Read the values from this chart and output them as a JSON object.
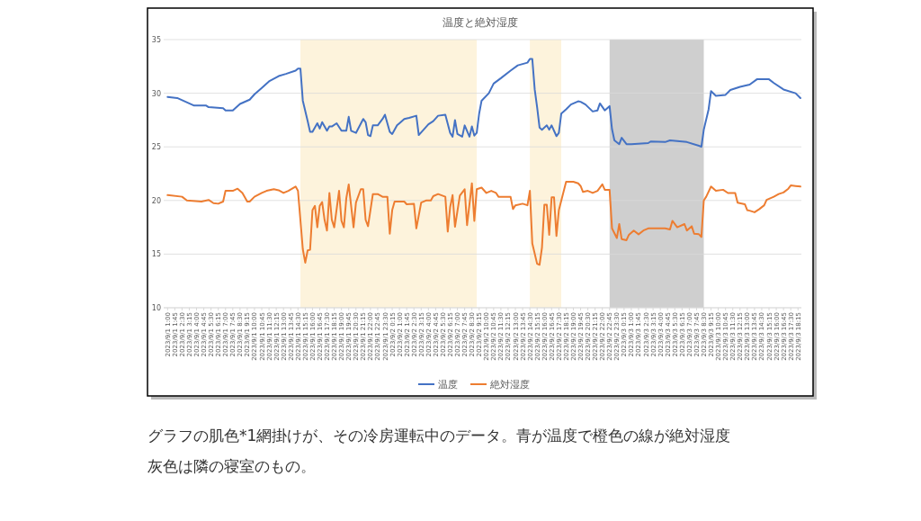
{
  "chart_data": {
    "type": "line",
    "title": "温度と絶対湿度",
    "xlim": [
      "2023-09-01T00:36",
      "2023-09-03T18:36"
    ],
    "ylim": [
      10,
      35
    ],
    "yticks": [
      10,
      15,
      20,
      25,
      30,
      35
    ],
    "grid": "y",
    "legend": "bottom",
    "xticks": [
      {
        "value": "2023-09-01T01:00",
        "label": "2023/9/1 1:00"
      },
      {
        "value": "2023-09-01T01:45",
        "label": "2023/9/1 1:45"
      },
      {
        "value": "2023-09-01T02:30",
        "label": "2023/9/1 2:30"
      },
      {
        "value": "2023-09-01T03:15",
        "label": "2023/9/1 3:15"
      },
      {
        "value": "2023-09-01T04:00",
        "label": "2023/9/1 4:00"
      },
      {
        "value": "2023-09-01T04:45",
        "label": "2023/9/1 4:45"
      },
      {
        "value": "2023-09-01T05:30",
        "label": "2023/9/1 5:30"
      },
      {
        "value": "2023-09-01T06:15",
        "label": "2023/9/1 6:15"
      },
      {
        "value": "2023-09-01T07:00",
        "label": "2023/9/1 7:00"
      },
      {
        "value": "2023-09-01T07:45",
        "label": "2023/9/1 7:45"
      },
      {
        "value": "2023-09-01T08:30",
        "label": "2023/9/1 8:30"
      },
      {
        "value": "2023-09-01T09:15",
        "label": "2023/9/1 9:15"
      },
      {
        "value": "2023-09-01T10:00",
        "label": "2023/9/1 10:00"
      },
      {
        "value": "2023-09-01T10:45",
        "label": "2023/9/1 10:45"
      },
      {
        "value": "2023-09-01T11:30",
        "label": "2023/9/1 11:30"
      },
      {
        "value": "2023-09-01T12:15",
        "label": "2023/9/1 12:15"
      },
      {
        "value": "2023-09-01T13:00",
        "label": "2023/9/1 13:00"
      },
      {
        "value": "2023-09-01T13:45",
        "label": "2023/9/1 13:45"
      },
      {
        "value": "2023-09-01T14:30",
        "label": "2023/9/1 14:30"
      },
      {
        "value": "2023-09-01T15:15",
        "label": "2023/9/1 15:15"
      },
      {
        "value": "2023-09-01T16:00",
        "label": "2023/9/1 16:00"
      },
      {
        "value": "2023-09-01T16:45",
        "label": "2023/9/1 16:45"
      },
      {
        "value": "2023-09-01T17:30",
        "label": "2023/9/1 17:30"
      },
      {
        "value": "2023-09-01T18:15",
        "label": "2023/9/1 18:15"
      },
      {
        "value": "2023-09-01T19:00",
        "label": "2023/9/1 19:00"
      },
      {
        "value": "2023-09-01T19:45",
        "label": "2023/9/1 19:45"
      },
      {
        "value": "2023-09-01T20:30",
        "label": "2023/9/1 20:30"
      },
      {
        "value": "2023-09-01T21:15",
        "label": "2023/9/1 21:15"
      },
      {
        "value": "2023-09-01T22:00",
        "label": "2023/9/1 22:00"
      },
      {
        "value": "2023-09-01T22:45",
        "label": "2023/9/1 22:45"
      },
      {
        "value": "2023-09-01T23:30",
        "label": "2023/9/1 23:30"
      },
      {
        "value": "2023-09-02T00:15",
        "label": "2023/9/2 0:15"
      },
      {
        "value": "2023-09-02T01:00",
        "label": "2023/9/2 1:00"
      },
      {
        "value": "2023-09-02T01:45",
        "label": "2023/9/2 1:45"
      },
      {
        "value": "2023-09-02T02:30",
        "label": "2023/9/2 2:30"
      },
      {
        "value": "2023-09-02T03:15",
        "label": "2023/9/2 3:15"
      },
      {
        "value": "2023-09-02T04:00",
        "label": "2023/9/2 4:00"
      },
      {
        "value": "2023-09-02T04:45",
        "label": "2023/9/2 4:45"
      },
      {
        "value": "2023-09-02T05:30",
        "label": "2023/9/2 5:30"
      },
      {
        "value": "2023-09-02T06:15",
        "label": "2023/9/2 6:15"
      },
      {
        "value": "2023-09-02T07:00",
        "label": "2023/9/2 7:00"
      },
      {
        "value": "2023-09-02T07:45",
        "label": "2023/9/2 7:45"
      },
      {
        "value": "2023-09-02T08:30",
        "label": "2023/9/2 8:30"
      },
      {
        "value": "2023-09-02T09:15",
        "label": "2023/9/2 9:15"
      },
      {
        "value": "2023-09-02T10:00",
        "label": "2023/9/2 10:00"
      },
      {
        "value": "2023-09-02T10:45",
        "label": "2023/9/2 10:45"
      },
      {
        "value": "2023-09-02T11:30",
        "label": "2023/9/2 11:30"
      },
      {
        "value": "2023-09-02T12:15",
        "label": "2023/9/2 12:15"
      },
      {
        "value": "2023-09-02T13:00",
        "label": "2023/9/2 13:00"
      },
      {
        "value": "2023-09-02T13:45",
        "label": "2023/9/2 13:45"
      },
      {
        "value": "2023-09-02T14:30",
        "label": "2023/9/2 14:30"
      },
      {
        "value": "2023-09-02T15:15",
        "label": "2023/9/2 15:15"
      },
      {
        "value": "2023-09-02T16:00",
        "label": "2023/9/2 16:00"
      },
      {
        "value": "2023-09-02T16:45",
        "label": "2023/9/2 16:45"
      },
      {
        "value": "2023-09-02T17:30",
        "label": "2023/9/2 17:30"
      },
      {
        "value": "2023-09-02T18:15",
        "label": "2023/9/2 18:15"
      },
      {
        "value": "2023-09-02T19:00",
        "label": "2023/9/2 19:00"
      },
      {
        "value": "2023-09-02T19:45",
        "label": "2023/9/2 19:45"
      },
      {
        "value": "2023-09-02T20:30",
        "label": "2023/9/2 20:30"
      },
      {
        "value": "2023-09-02T21:15",
        "label": "2023/9/2 21:15"
      },
      {
        "value": "2023-09-02T22:00",
        "label": "2023/9/2 22:00"
      },
      {
        "value": "2023-09-02T22:45",
        "label": "2023/9/2 22:45"
      },
      {
        "value": "2023-09-02T23:30",
        "label": "2023/9/2 23:30"
      },
      {
        "value": "2023-09-03T00:15",
        "label": "2023/9/3 0:15"
      },
      {
        "value": "2023-09-03T01:00",
        "label": "2023/9/3 1:00"
      },
      {
        "value": "2023-09-03T01:45",
        "label": "2023/9/3 1:45"
      },
      {
        "value": "2023-09-03T02:30",
        "label": "2023/9/3 2:30"
      },
      {
        "value": "2023-09-03T03:15",
        "label": "2023/9/3 3:15"
      },
      {
        "value": "2023-09-03T04:00",
        "label": "2023/9/3 4:00"
      },
      {
        "value": "2023-09-03T04:45",
        "label": "2023/9/3 4:45"
      },
      {
        "value": "2023-09-03T05:30",
        "label": "2023/9/3 5:30"
      },
      {
        "value": "2023-09-03T06:15",
        "label": "2023/9/3 6:15"
      },
      {
        "value": "2023-09-03T07:00",
        "label": "2023/9/3 7:00"
      },
      {
        "value": "2023-09-03T07:45",
        "label": "2023/9/3 7:45"
      },
      {
        "value": "2023-09-03T08:30",
        "label": "2023/9/3 8:30"
      },
      {
        "value": "2023-09-03T09:15",
        "label": "2023/9/3 9:15"
      },
      {
        "value": "2023-09-03T10:00",
        "label": "2023/9/3 10:00"
      },
      {
        "value": "2023-09-03T10:45",
        "label": "2023/9/3 10:45"
      },
      {
        "value": "2023-09-03T11:30",
        "label": "2023/9/3 11:30"
      },
      {
        "value": "2023-09-03T12:15",
        "label": "2023/9/3 12:15"
      },
      {
        "value": "2023-09-03T13:00",
        "label": "2023/9/3 13:00"
      },
      {
        "value": "2023-09-03T13:45",
        "label": "2023/9/3 13:45"
      },
      {
        "value": "2023-09-03T14:30",
        "label": "2023/9/3 14:30"
      },
      {
        "value": "2023-09-03T15:15",
        "label": "2023/9/3 15:15"
      },
      {
        "value": "2023-09-03T16:00",
        "label": "2023/9/3 16:00"
      },
      {
        "value": "2023-09-03T16:45",
        "label": "2023/9/3 16:45"
      },
      {
        "value": "2023-09-03T17:30",
        "label": "2023/9/3 17:30"
      },
      {
        "value": "2023-09-03T18:15",
        "label": "2023/9/3 18:15"
      }
    ],
    "bands": [
      {
        "axis": "x",
        "from": "2023-09-01T14:45",
        "to": "2023-09-02T09:00",
        "color": "#fdf3dc"
      },
      {
        "axis": "x",
        "from": "2023-09-02T14:30",
        "to": "2023-09-02T17:45",
        "color": "#fdf3dc"
      },
      {
        "axis": "x",
        "from": "2023-09-02T22:45",
        "to": "2023-09-03T08:30",
        "color": "#cfcfcf"
      }
    ],
    "series": [
      {
        "name": "温度",
        "color": "#4472c4",
        "x": [
          "2023-09-01T01:00",
          "2023-09-01T02:00",
          "2023-09-01T03:45",
          "2023-09-01T05:00",
          "2023-09-01T05:15",
          "2023-09-01T06:45",
          "2023-09-01T07:00",
          "2023-09-01T07:45",
          "2023-09-01T08:30",
          "2023-09-01T09:30",
          "2023-09-01T10:00",
          "2023-09-01T10:45",
          "2023-09-01T11:30",
          "2023-09-01T12:30",
          "2023-09-01T13:15",
          "2023-09-01T14:15",
          "2023-09-01T14:30",
          "2023-09-01T14:45",
          "2023-09-01T15:00",
          "2023-09-01T15:30",
          "2023-09-01T15:45",
          "2023-09-01T16:00",
          "2023-09-01T16:30",
          "2023-09-01T16:45",
          "2023-09-01T17:00",
          "2023-09-01T17:30",
          "2023-09-01T17:45",
          "2023-09-01T18:00",
          "2023-09-01T18:30",
          "2023-09-01T19:00",
          "2023-09-01T19:30",
          "2023-09-01T19:45",
          "2023-09-01T20:00",
          "2023-09-01T20:30",
          "2023-09-01T21:15",
          "2023-09-01T21:30",
          "2023-09-01T21:45",
          "2023-09-01T22:00",
          "2023-09-01T22:15",
          "2023-09-01T22:45",
          "2023-09-01T23:15",
          "2023-09-01T23:30",
          "2023-09-02T00:00",
          "2023-09-02T00:15",
          "2023-09-02T00:45",
          "2023-09-02T01:00",
          "2023-09-02T01:30",
          "2023-09-02T02:00",
          "2023-09-02T02:45",
          "2023-09-02T03:00",
          "2023-09-02T03:30",
          "2023-09-02T04:00",
          "2023-09-02T04:30",
          "2023-09-02T05:00",
          "2023-09-02T05:45",
          "2023-09-02T06:15",
          "2023-09-02T06:30",
          "2023-09-02T06:45",
          "2023-09-02T07:00",
          "2023-09-02T07:30",
          "2023-09-02T07:45",
          "2023-09-02T08:15",
          "2023-09-02T08:30",
          "2023-09-02T08:45",
          "2023-09-02T09:00",
          "2023-09-02T09:15",
          "2023-09-02T09:30",
          "2023-09-02T10:15",
          "2023-09-02T10:45",
          "2023-09-02T11:30",
          "2023-09-02T12:30",
          "2023-09-02T13:15",
          "2023-09-02T14:15",
          "2023-09-02T14:30",
          "2023-09-02T14:45",
          "2023-09-02T15:00",
          "2023-09-02T15:15",
          "2023-09-02T15:30",
          "2023-09-02T15:45",
          "2023-09-02T16:15",
          "2023-09-02T16:30",
          "2023-09-02T16:45",
          "2023-09-02T17:15",
          "2023-09-02T17:30",
          "2023-09-02T17:45",
          "2023-09-02T18:15",
          "2023-09-02T18:45",
          "2023-09-02T19:30",
          "2023-09-02T19:45",
          "2023-09-02T20:15",
          "2023-09-02T21:00",
          "2023-09-02T21:30",
          "2023-09-02T21:45",
          "2023-09-02T22:15",
          "2023-09-02T22:45",
          "2023-09-02T23:00",
          "2023-09-02T23:15",
          "2023-09-02T23:45",
          "2023-09-03T00:00",
          "2023-09-03T00:30",
          "2023-09-03T01:00",
          "2023-09-03T02:45",
          "2023-09-03T03:00",
          "2023-09-03T04:30",
          "2023-09-03T05:00",
          "2023-09-03T06:45",
          "2023-09-03T08:00",
          "2023-09-03T08:15",
          "2023-09-03T08:30",
          "2023-09-03T09:00",
          "2023-09-03T09:15",
          "2023-09-03T09:45",
          "2023-09-03T10:45",
          "2023-09-03T11:15",
          "2023-09-03T12:15",
          "2023-09-03T13:15",
          "2023-09-03T14:00",
          "2023-09-03T15:15",
          "2023-09-03T15:45",
          "2023-09-03T16:45",
          "2023-09-03T18:00",
          "2023-09-03T18:30"
        ],
        "values": [
          29.65,
          29.55,
          28.85,
          28.85,
          28.7,
          28.6,
          28.4,
          28.4,
          29.0,
          29.4,
          29.9,
          30.5,
          31.1,
          31.6,
          31.8,
          32.1,
          32.3,
          32.3,
          29.3,
          27.4,
          26.4,
          26.4,
          27.2,
          26.7,
          27.3,
          26.5,
          26.9,
          26.9,
          27.2,
          26.5,
          26.5,
          27.8,
          26.5,
          26.3,
          27.6,
          27.3,
          26.1,
          26.0,
          27.0,
          27.0,
          27.6,
          28.0,
          26.4,
          26.2,
          27.0,
          27.2,
          27.6,
          27.7,
          27.9,
          26.1,
          26.6,
          27.1,
          27.4,
          27.9,
          28.0,
          26.3,
          25.95,
          27.5,
          26.2,
          25.95,
          27.0,
          25.95,
          26.9,
          26.05,
          26.3,
          28.1,
          29.3,
          30.0,
          30.9,
          31.4,
          32.1,
          32.6,
          32.85,
          33.2,
          33.2,
          30.35,
          28.7,
          26.8,
          26.6,
          27.0,
          26.6,
          27.0,
          26.0,
          26.3,
          28.1,
          28.5,
          28.95,
          29.25,
          29.2,
          28.95,
          28.3,
          28.4,
          29.05,
          28.4,
          28.8,
          26.65,
          25.6,
          25.25,
          25.85,
          25.25,
          25.25,
          25.35,
          25.5,
          25.45,
          25.6,
          25.45,
          25.1,
          25.0,
          26.6,
          28.5,
          30.2,
          29.75,
          29.85,
          30.3,
          30.6,
          30.8,
          31.3,
          31.3,
          30.95,
          30.35,
          30.0,
          29.55
        ]
      },
      {
        "name": "絶対湿度",
        "color": "#ed7d31",
        "x": [
          "2023-09-01T01:00",
          "2023-09-01T02:30",
          "2023-09-01T03:00",
          "2023-09-01T04:30",
          "2023-09-01T05:15",
          "2023-09-01T05:45",
          "2023-09-01T06:15",
          "2023-09-01T06:45",
          "2023-09-01T07:00",
          "2023-09-01T07:45",
          "2023-09-01T08:15",
          "2023-09-01T08:45",
          "2023-09-01T09:15",
          "2023-09-01T09:30",
          "2023-09-01T10:00",
          "2023-09-01T10:45",
          "2023-09-01T11:15",
          "2023-09-01T12:00",
          "2023-09-01T12:30",
          "2023-09-01T13:00",
          "2023-09-01T13:30",
          "2023-09-01T14:15",
          "2023-09-01T14:30",
          "2023-09-01T15:00",
          "2023-09-01T15:15",
          "2023-09-01T15:30",
          "2023-09-01T15:45",
          "2023-09-01T16:00",
          "2023-09-01T16:15",
          "2023-09-01T16:30",
          "2023-09-01T16:45",
          "2023-09-01T17:00",
          "2023-09-01T17:15",
          "2023-09-01T17:30",
          "2023-09-01T17:45",
          "2023-09-01T18:00",
          "2023-09-01T18:15",
          "2023-09-01T18:45",
          "2023-09-01T19:00",
          "2023-09-01T19:15",
          "2023-09-01T19:30",
          "2023-09-01T19:45",
          "2023-09-01T20:15",
          "2023-09-01T20:30",
          "2023-09-01T21:00",
          "2023-09-01T21:15",
          "2023-09-01T21:30",
          "2023-09-01T21:45",
          "2023-09-01T22:15",
          "2023-09-01T22:45",
          "2023-09-01T23:15",
          "2023-09-01T23:45",
          "2023-09-02T00:00",
          "2023-09-02T00:15",
          "2023-09-02T00:30",
          "2023-09-02T01:30",
          "2023-09-02T01:45",
          "2023-09-02T02:30",
          "2023-09-02T02:45",
          "2023-09-02T03:15",
          "2023-09-02T03:45",
          "2023-09-02T04:15",
          "2023-09-02T04:30",
          "2023-09-02T05:00",
          "2023-09-02T05:45",
          "2023-09-02T06:00",
          "2023-09-02T06:15",
          "2023-09-02T06:30",
          "2023-09-02T06:45",
          "2023-09-02T07:15",
          "2023-09-02T07:45",
          "2023-09-02T08:00",
          "2023-09-02T08:30",
          "2023-09-02T08:45",
          "2023-09-02T09:00",
          "2023-09-02T09:30",
          "2023-09-02T10:00",
          "2023-09-02T10:30",
          "2023-09-02T11:00",
          "2023-09-02T11:15",
          "2023-09-02T12:30",
          "2023-09-02T12:45",
          "2023-09-02T13:00",
          "2023-09-02T13:45",
          "2023-09-02T14:15",
          "2023-09-02T14:30",
          "2023-09-02T14:45",
          "2023-09-02T15:15",
          "2023-09-02T15:30",
          "2023-09-02T15:45",
          "2023-09-02T16:00",
          "2023-09-02T16:15",
          "2023-09-02T16:30",
          "2023-09-02T16:45",
          "2023-09-02T17:00",
          "2023-09-02T17:15",
          "2023-09-02T17:30",
          "2023-09-02T18:15",
          "2023-09-02T19:00",
          "2023-09-02T19:30",
          "2023-09-02T19:45",
          "2023-09-02T20:00",
          "2023-09-02T20:30",
          "2023-09-02T21:00",
          "2023-09-02T21:30",
          "2023-09-02T22:00",
          "2023-09-02T22:15",
          "2023-09-02T22:45",
          "2023-09-02T23:00",
          "2023-09-02T23:30",
          "2023-09-02T23:45",
          "2023-09-03T00:00",
          "2023-09-03T00:30",
          "2023-09-03T00:45",
          "2023-09-03T01:15",
          "2023-09-03T01:45",
          "2023-09-03T02:15",
          "2023-09-03T02:45",
          "2023-09-03T04:30",
          "2023-09-03T05:00",
          "2023-09-03T05:15",
          "2023-09-03T05:45",
          "2023-09-03T06:30",
          "2023-09-03T06:45",
          "2023-09-03T07:15",
          "2023-09-03T07:30",
          "2023-09-03T08:00",
          "2023-09-03T08:15",
          "2023-09-03T08:30",
          "2023-09-03T08:45",
          "2023-09-03T09:15",
          "2023-09-03T09:45",
          "2023-09-03T10:30",
          "2023-09-03T11:00",
          "2023-09-03T11:45",
          "2023-09-03T12:00",
          "2023-09-03T12:45",
          "2023-09-03T13:00",
          "2023-09-03T13:15",
          "2023-09-03T13:45",
          "2023-09-03T14:15",
          "2023-09-03T14:45",
          "2023-09-03T15:00",
          "2023-09-03T15:45",
          "2023-09-03T16:15",
          "2023-09-03T16:45",
          "2023-09-03T17:15",
          "2023-09-03T17:30",
          "2023-09-03T18:00",
          "2023-09-03T18:30"
        ],
        "values": [
          20.5,
          20.35,
          20.0,
          19.9,
          20.05,
          19.75,
          19.7,
          19.9,
          20.9,
          20.9,
          21.1,
          20.7,
          19.9,
          19.9,
          20.35,
          20.7,
          20.9,
          21.05,
          20.95,
          20.7,
          20.9,
          21.3,
          20.9,
          15.45,
          14.2,
          15.35,
          15.4,
          19.1,
          19.5,
          17.5,
          19.5,
          19.85,
          18.2,
          17.2,
          20.7,
          18.2,
          17.5,
          20.9,
          18.1,
          17.5,
          20.2,
          21.5,
          17.5,
          19.8,
          21.05,
          21.05,
          18.2,
          17.6,
          20.6,
          20.6,
          20.35,
          20.35,
          16.9,
          19.1,
          19.9,
          19.9,
          19.65,
          19.7,
          17.4,
          19.8,
          20.0,
          20.0,
          20.4,
          20.6,
          20.35,
          17.1,
          19.4,
          20.5,
          17.55,
          20.45,
          21.05,
          17.7,
          21.6,
          18.1,
          21.05,
          21.2,
          20.7,
          20.9,
          20.7,
          20.35,
          20.35,
          19.2,
          19.55,
          19.7,
          19.55,
          20.9,
          16.0,
          14.1,
          14.0,
          15.6,
          19.6,
          19.6,
          16.8,
          20.3,
          20.3,
          16.7,
          19.1,
          21.75,
          21.75,
          21.6,
          21.35,
          20.8,
          20.9,
          20.7,
          20.9,
          21.5,
          21.0,
          21.0,
          17.4,
          16.5,
          17.8,
          16.4,
          16.3,
          16.8,
          17.2,
          16.85,
          17.2,
          17.4,
          17.4,
          17.3,
          18.1,
          17.5,
          17.8,
          17.2,
          17.6,
          16.9,
          16.85,
          16.6,
          20.0,
          20.35,
          21.3,
          20.9,
          21.0,
          20.7,
          20.7,
          19.8,
          19.65,
          19.1,
          19.05,
          18.9,
          19.2,
          19.55,
          20.05,
          20.35,
          20.6,
          20.75,
          21.1,
          21.4,
          21.35,
          21.3
        ]
      }
    ],
    "annotations": [
      "グラフの肌色*1網掛けが、その冷房運転中のデータ。青が温度で橙色の線が絶対湿度",
      "灰色は隣の寝室のもの。"
    ]
  }
}
